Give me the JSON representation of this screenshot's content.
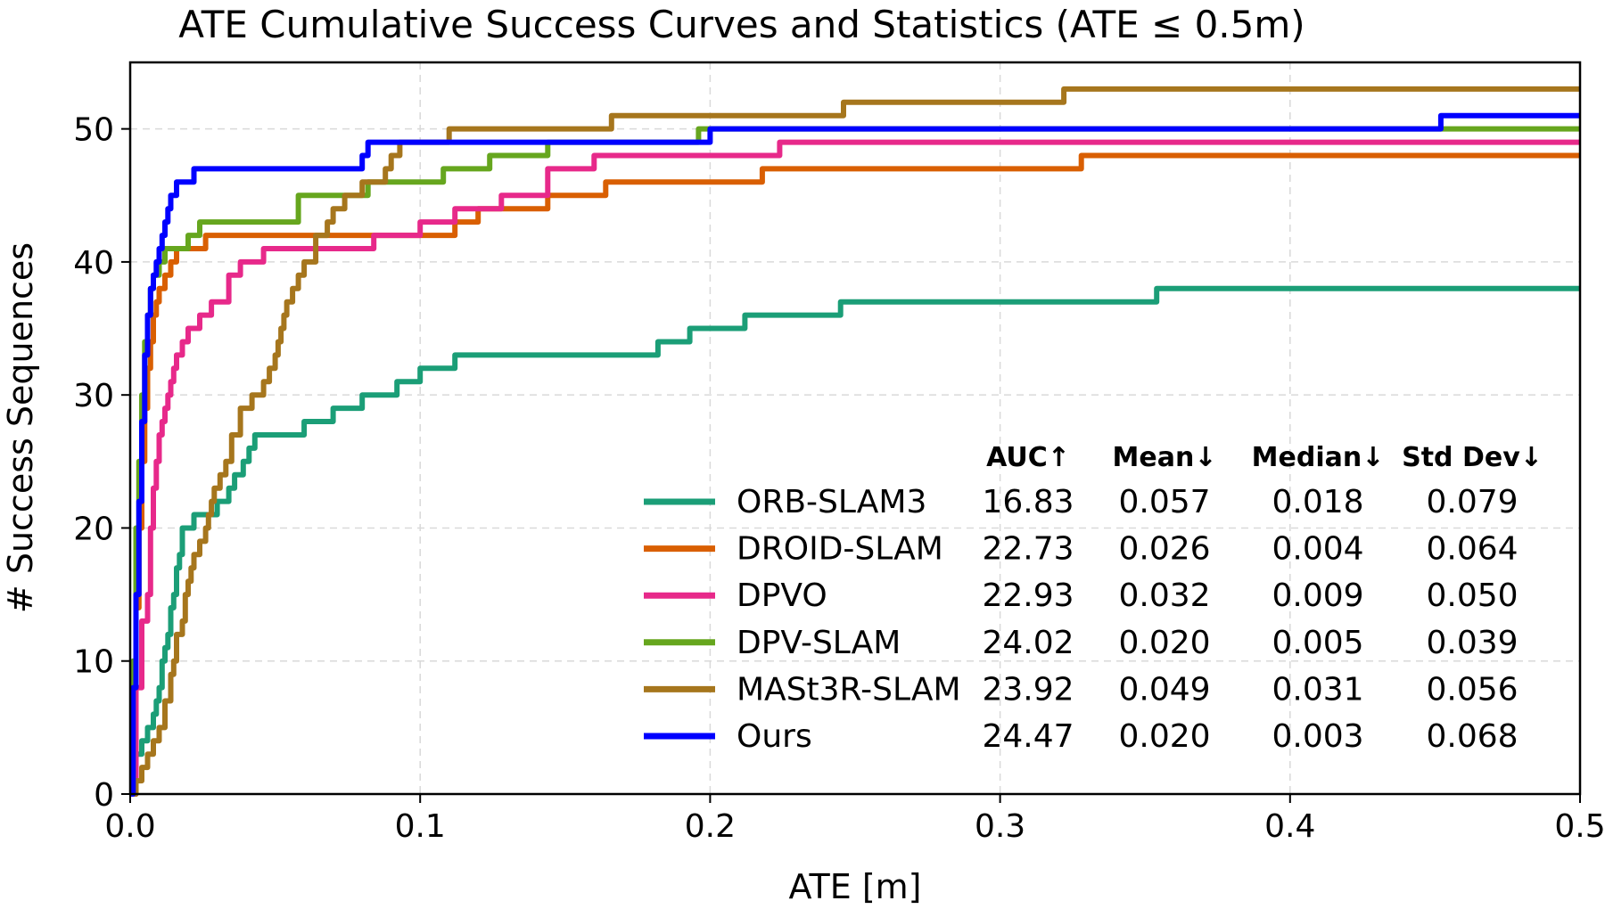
{
  "chart_data": {
    "type": "line",
    "step": true,
    "title": "ATE Cumulative Success Curves and Statistics (ATE ≤ 0.5m)",
    "xlabel": "ATE [m]",
    "ylabel": "# Success Sequences",
    "xlim": [
      0,
      0.5
    ],
    "ylim": [
      0,
      55
    ],
    "xticks": [
      0.0,
      0.1,
      0.2,
      0.3,
      0.4,
      0.5
    ],
    "xtick_labels": [
      "0.0",
      "0.1",
      "0.2",
      "0.3",
      "0.4",
      "0.5"
    ],
    "yticks": [
      0,
      10,
      20,
      30,
      40,
      50
    ],
    "ytick_labels": [
      "0",
      "10",
      "20",
      "30",
      "40",
      "50"
    ],
    "grid": true,
    "legend_position": "bottom-right",
    "stat_headers": [
      "AUC↑",
      "Mean↓",
      "Median↓",
      "Std Dev↓"
    ],
    "series": [
      {
        "name": "ORB-SLAM3",
        "color": "#1b9e77",
        "stats": [
          "16.83",
          "0.057",
          "0.018",
          "0.079"
        ],
        "x": [
          0,
          0.002,
          0.004,
          0.006,
          0.008,
          0.009,
          0.01,
          0.011,
          0.012,
          0.013,
          0.014,
          0.015,
          0.016,
          0.017,
          0.018,
          0.02,
          0.022,
          0.025,
          0.03,
          0.032,
          0.034,
          0.036,
          0.039,
          0.041,
          0.043,
          0.046,
          0.06,
          0.064,
          0.07,
          0.074,
          0.08,
          0.092,
          0.095,
          0.1,
          0.112,
          0.14,
          0.182,
          0.193,
          0.212,
          0.245,
          0.354,
          0.5
        ],
        "y": [
          0,
          3,
          4,
          5,
          6,
          7,
          8,
          10,
          11,
          12,
          14,
          15,
          17,
          18,
          20,
          20,
          21,
          21,
          22,
          22,
          23,
          24,
          25,
          26,
          27,
          27,
          28,
          28,
          29,
          29,
          30,
          31,
          31,
          32,
          33,
          33,
          34,
          35,
          36,
          37,
          38,
          38
        ]
      },
      {
        "name": "DROID-SLAM",
        "color": "#d95f02",
        "stats": [
          "22.73",
          "0.026",
          "0.004",
          "0.064"
        ],
        "x": [
          0,
          0.001,
          0.002,
          0.003,
          0.004,
          0.005,
          0.006,
          0.007,
          0.008,
          0.009,
          0.01,
          0.012,
          0.014,
          0.016,
          0.018,
          0.021,
          0.026,
          0.1,
          0.112,
          0.12,
          0.132,
          0.144,
          0.164,
          0.218,
          0.328,
          0.5
        ],
        "y": [
          0,
          8,
          14,
          20,
          25,
          29,
          32,
          34,
          36,
          37,
          38,
          39,
          40,
          41,
          41,
          41,
          42,
          42,
          43,
          44,
          44,
          45,
          46,
          47,
          48,
          48
        ]
      },
      {
        "name": "DPVO",
        "color": "#e7298a",
        "stats": [
          "22.93",
          "0.032",
          "0.009",
          "0.050"
        ],
        "x": [
          0,
          0.002,
          0.004,
          0.006,
          0.007,
          0.008,
          0.009,
          0.01,
          0.011,
          0.012,
          0.013,
          0.014,
          0.015,
          0.016,
          0.017,
          0.018,
          0.02,
          0.022,
          0.024,
          0.026,
          0.028,
          0.03,
          0.034,
          0.038,
          0.042,
          0.046,
          0.08,
          0.084,
          0.1,
          0.112,
          0.128,
          0.136,
          0.144,
          0.16,
          0.2,
          0.224,
          0.5
        ],
        "y": [
          0,
          8,
          13,
          15,
          20,
          23,
          25,
          27,
          28,
          29,
          30,
          31,
          32,
          33,
          33,
          34,
          35,
          35,
          36,
          36,
          37,
          37,
          39,
          40,
          40,
          41,
          41,
          42,
          43,
          44,
          45,
          45,
          47,
          48,
          48,
          49,
          49
        ]
      },
      {
        "name": "DPV-SLAM",
        "color": "#66a61e",
        "stats": [
          "24.02",
          "0.020",
          "0.005",
          "0.039"
        ],
        "x": [
          0,
          0.001,
          0.002,
          0.003,
          0.004,
          0.005,
          0.006,
          0.007,
          0.008,
          0.01,
          0.012,
          0.014,
          0.02,
          0.024,
          0.055,
          0.058,
          0.082,
          0.094,
          0.108,
          0.118,
          0.124,
          0.136,
          0.144,
          0.196,
          0.5
        ],
        "y": [
          0,
          10,
          20,
          25,
          30,
          34,
          36,
          38,
          39,
          40,
          41,
          41,
          42,
          43,
          43,
          45,
          46,
          46,
          47,
          47,
          48,
          48,
          49,
          50,
          50
        ]
      },
      {
        "name": "MASt3R-SLAM",
        "color": "#a6761d",
        "stats": [
          "23.92",
          "0.049",
          "0.031",
          "0.056"
        ],
        "x": [
          0,
          0.002,
          0.004,
          0.006,
          0.008,
          0.01,
          0.012,
          0.014,
          0.015,
          0.016,
          0.018,
          0.019,
          0.02,
          0.021,
          0.022,
          0.024,
          0.026,
          0.027,
          0.028,
          0.029,
          0.031,
          0.033,
          0.035,
          0.038,
          0.04,
          0.042,
          0.044,
          0.046,
          0.048,
          0.05,
          0.051,
          0.052,
          0.053,
          0.054,
          0.056,
          0.058,
          0.06,
          0.064,
          0.068,
          0.07,
          0.074,
          0.076,
          0.08,
          0.082,
          0.085,
          0.088,
          0.09,
          0.093,
          0.096,
          0.1,
          0.108,
          0.11,
          0.14,
          0.166,
          0.2,
          0.246,
          0.3,
          0.322,
          0.5
        ],
        "y": [
          0,
          1,
          2,
          3,
          4,
          5,
          7,
          9,
          10,
          12,
          13,
          15,
          16,
          17,
          18,
          19,
          20,
          21,
          22,
          23,
          24,
          25,
          27,
          29,
          29,
          30,
          30,
          31,
          32,
          33,
          34,
          35,
          36,
          37,
          38,
          39,
          40,
          42,
          43,
          44,
          45,
          45,
          46,
          46,
          46,
          47,
          48,
          49,
          49,
          49,
          49,
          50,
          50,
          51,
          51,
          52,
          52,
          53,
          53
        ]
      },
      {
        "name": "Ours",
        "color": "#0000ff",
        "stats": [
          "24.47",
          "0.020",
          "0.003",
          "0.068"
        ],
        "x": [
          0,
          0.001,
          0.002,
          0.003,
          0.004,
          0.005,
          0.006,
          0.007,
          0.008,
          0.009,
          0.01,
          0.011,
          0.012,
          0.013,
          0.014,
          0.015,
          0.016,
          0.018,
          0.02,
          0.022,
          0.078,
          0.08,
          0.082,
          0.09,
          0.197,
          0.2,
          0.452,
          0.5
        ],
        "y": [
          0,
          8,
          15,
          22,
          28,
          33,
          36,
          38,
          39,
          40,
          41,
          42,
          43,
          44,
          45,
          45,
          46,
          46,
          46,
          47,
          47,
          48,
          49,
          49,
          49,
          50,
          51,
          51
        ]
      }
    ]
  }
}
